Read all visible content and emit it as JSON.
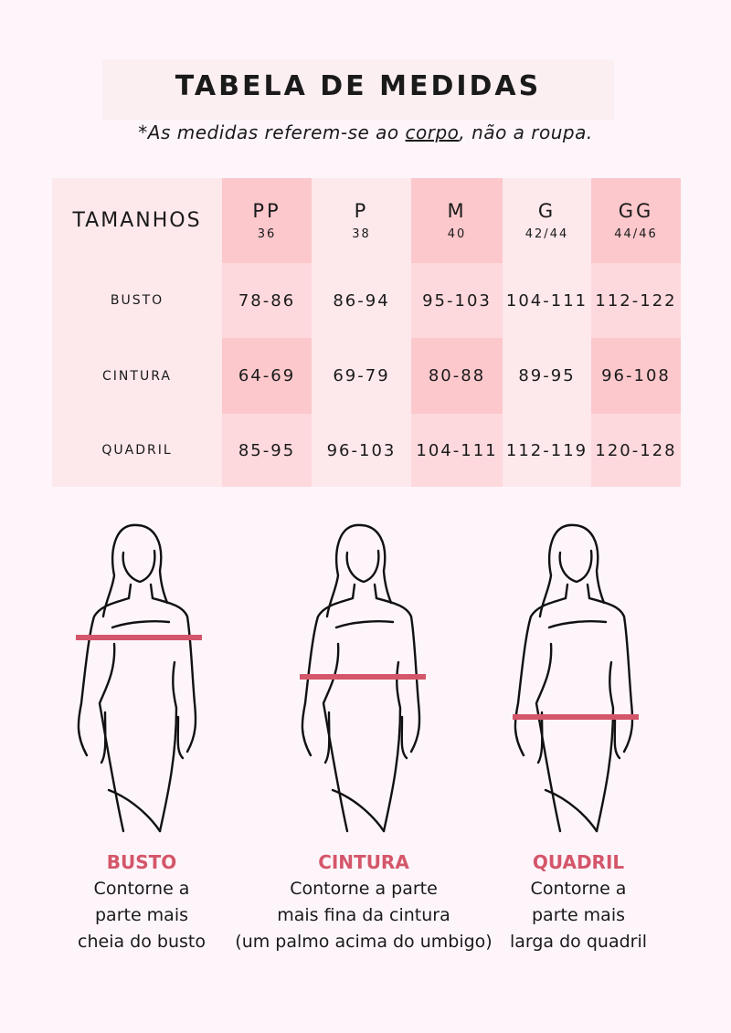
{
  "title": "TABELA DE MEDIDAS",
  "note": {
    "prefix": "*As medidas referem-se ao ",
    "underlined": "corpo",
    "suffix": ", não a roupa."
  },
  "table": {
    "header_label": "TAMANHOS",
    "sizes": [
      {
        "size": "PP",
        "num": "36"
      },
      {
        "size": "P",
        "num": "38"
      },
      {
        "size": "M",
        "num": "40"
      },
      {
        "size": "G",
        "num": "42/44"
      },
      {
        "size": "GG",
        "num": "44/46"
      }
    ],
    "rows": [
      {
        "label": "BUSTO",
        "values": [
          "78-86",
          "86-94",
          "95-103",
          "104-111",
          "112-122"
        ]
      },
      {
        "label": "CINTURA",
        "values": [
          "64-69",
          "69-79",
          "80-88",
          "89-95",
          "96-108"
        ]
      },
      {
        "label": "QUADRIL",
        "values": [
          "85-95",
          "96-103",
          "104-111",
          "112-119",
          "120-128"
        ]
      }
    ]
  },
  "colors": {
    "accent": "#d4566a",
    "strong": "#fcc8cc",
    "medium": "#fdd9dd",
    "light": "#fde8ec"
  },
  "figures": [
    {
      "heading": "BUSTO",
      "lines": [
        "Contorne a",
        "parte mais",
        "cheia do busto"
      ]
    },
    {
      "heading": "CINTURA",
      "lines": [
        "Contorne a parte",
        "mais fina da cintura",
        "(um palmo acima do umbigo)"
      ]
    },
    {
      "heading": "QUADRIL",
      "lines": [
        "Contorne a",
        "parte mais",
        "larga do quadril"
      ]
    }
  ]
}
